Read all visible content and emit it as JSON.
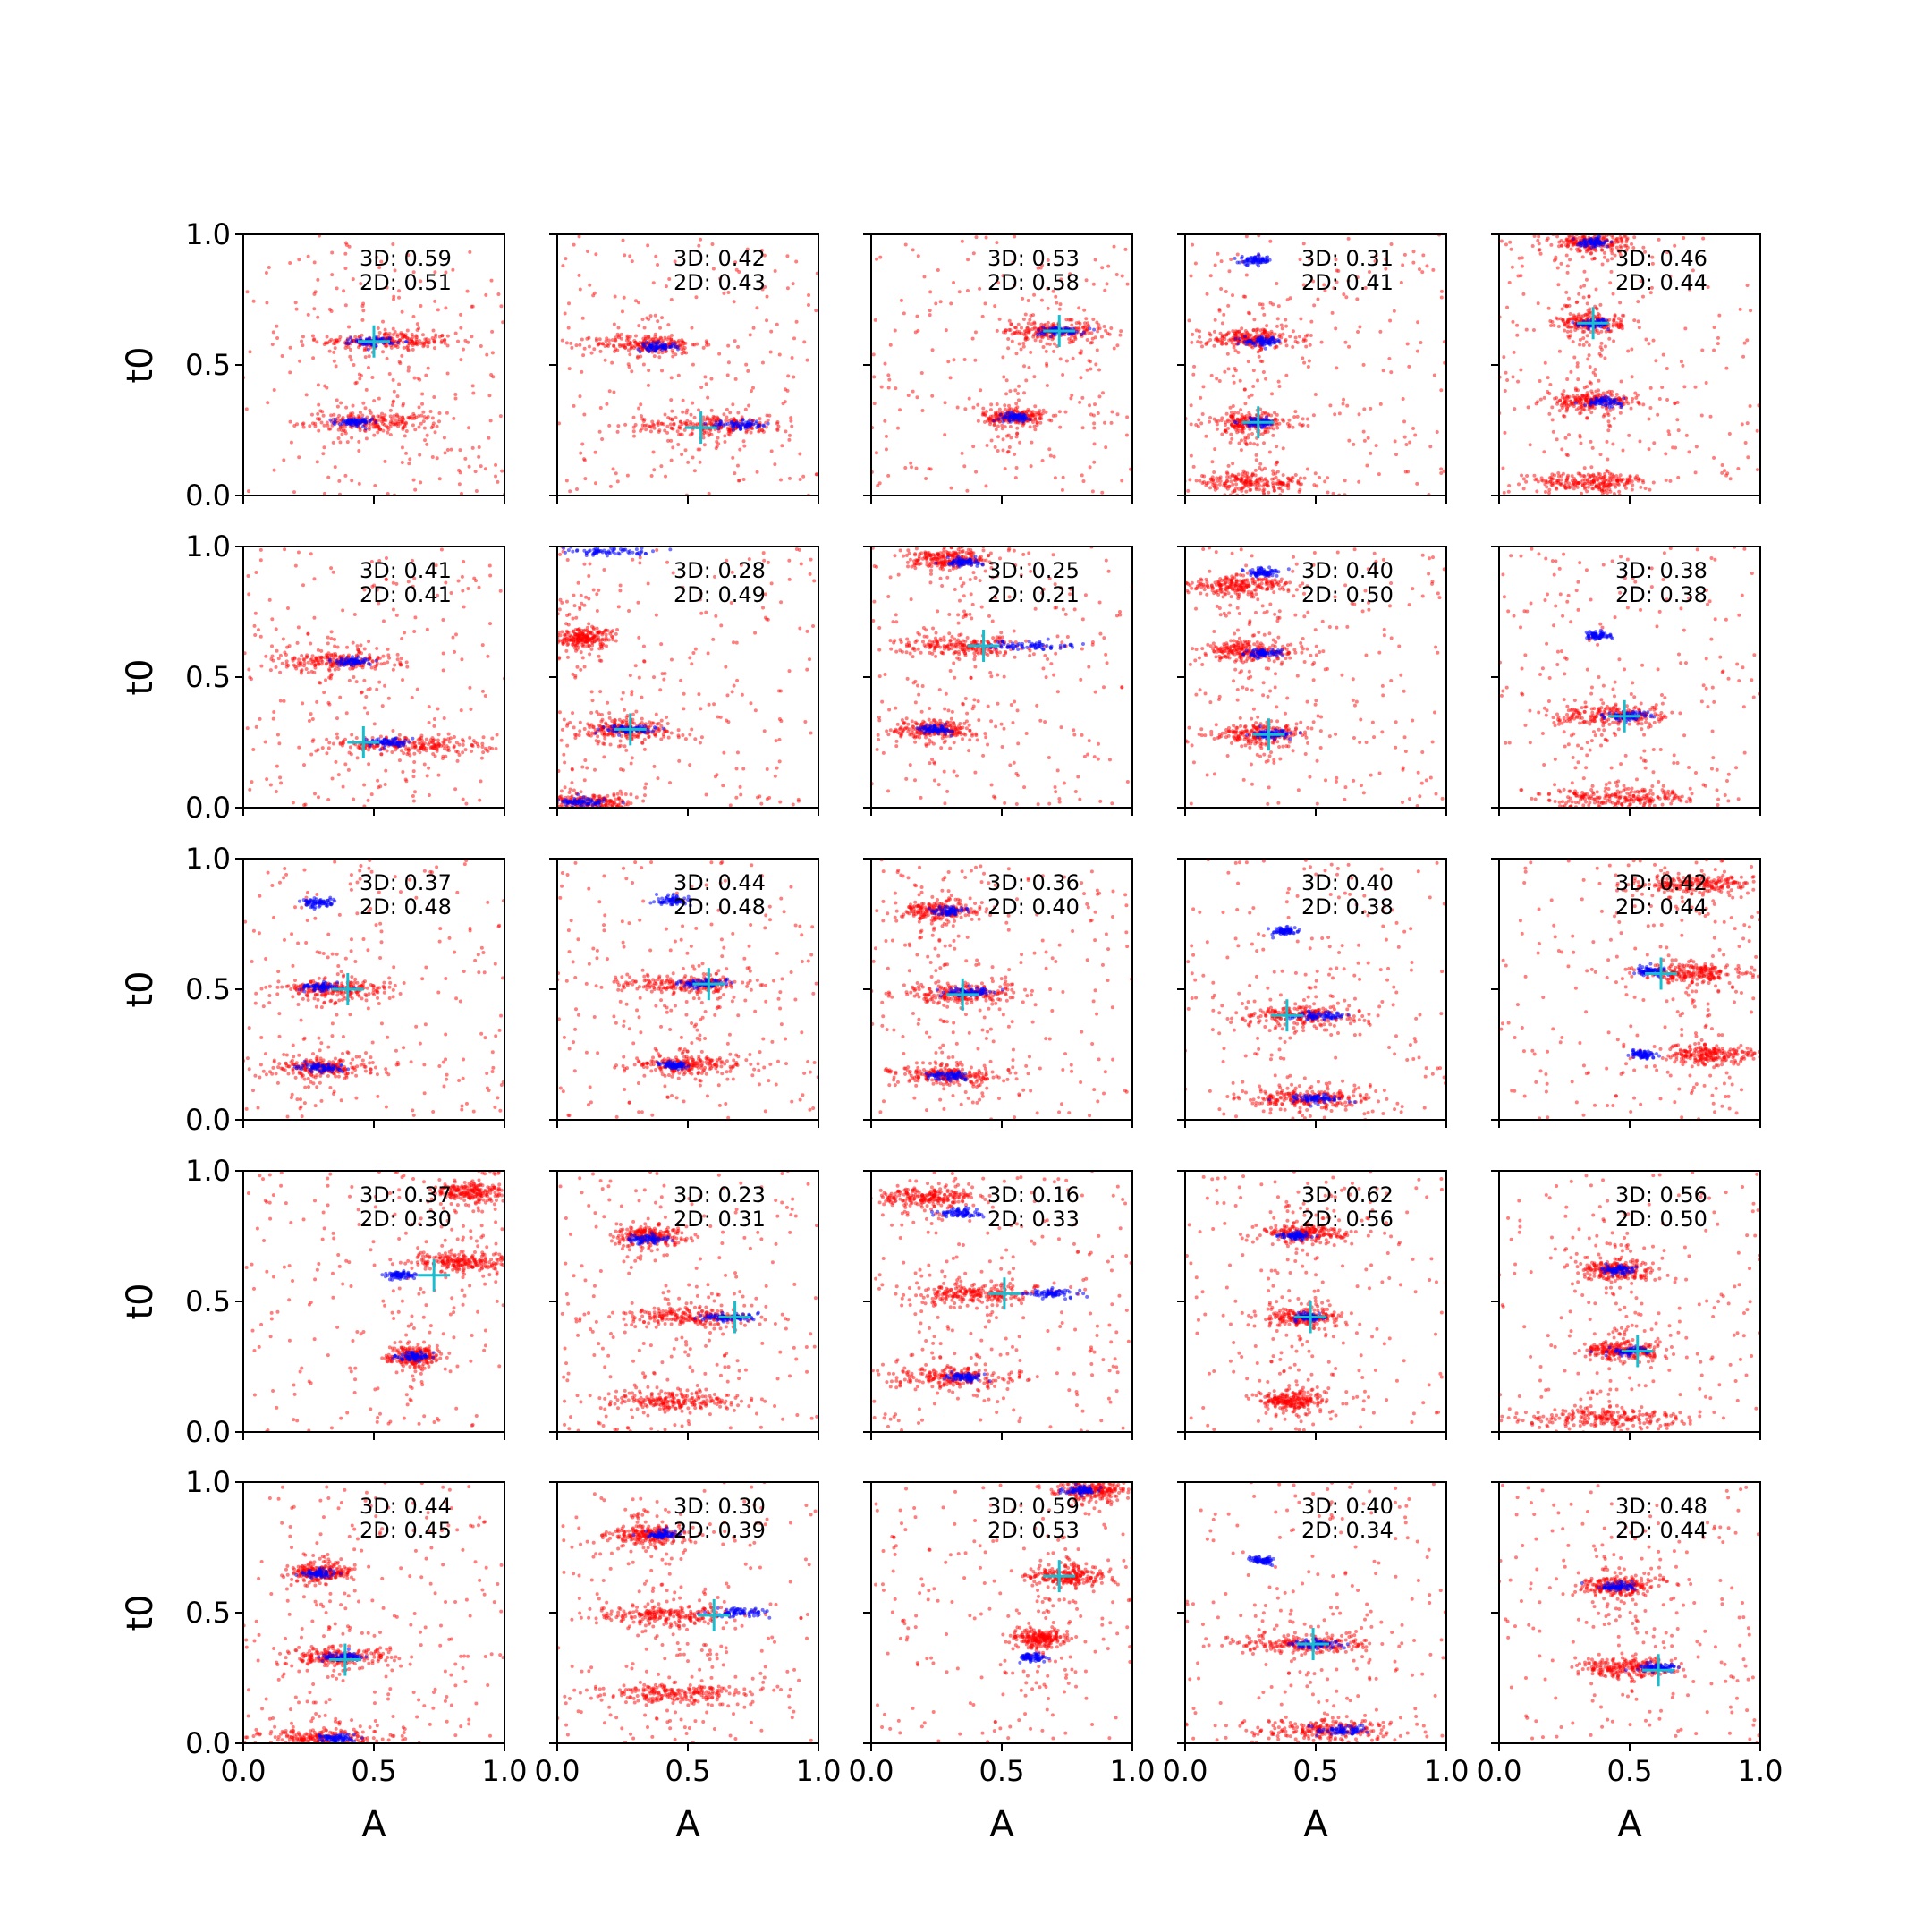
{
  "colors": {
    "scatter_3d": "#ff0000",
    "scatter_2d": "#0000ff",
    "true_marker": "#17becf",
    "axes": "#000000"
  },
  "chart_data": {
    "type": "scatter",
    "layout": "5x5 grid of scatter subplots",
    "xlabel": "A",
    "ylabel": "t0",
    "xlim": [
      0.0,
      1.0
    ],
    "ylim": [
      0.0,
      1.0
    ],
    "xticks": [
      "0.0",
      "0.5",
      "1.0"
    ],
    "yticks": [
      "0.0",
      "0.5",
      "1.0"
    ],
    "series_colors": {
      "3D": "#ff0000",
      "2D": "#0000ff"
    },
    "panels": [
      {
        "row": 0,
        "col": 0,
        "label3d": "3D: 0.59",
        "label2d": "2D: 0.51",
        "true": {
          "A": 0.5,
          "t0": 0.59
        },
        "clusters": [
          {
            "A": 0.55,
            "t0": 0.59,
            "sA": 0.13
          },
          {
            "A": 0.5,
            "t0": 0.28,
            "sA": 0.13
          }
        ],
        "blue": [
          {
            "A": 0.5,
            "t0": 0.59,
            "sA": 0.07
          },
          {
            "A": 0.42,
            "t0": 0.28,
            "sA": 0.06
          }
        ]
      },
      {
        "row": 0,
        "col": 1,
        "label3d": "3D: 0.42",
        "label2d": "2D: 0.43",
        "true": {
          "A": 0.55,
          "t0": 0.26
        },
        "clusters": [
          {
            "A": 0.35,
            "t0": 0.58,
            "sA": 0.1
          },
          {
            "A": 0.6,
            "t0": 0.27,
            "sA": 0.15
          }
        ],
        "blue": [
          {
            "A": 0.38,
            "t0": 0.57,
            "sA": 0.06
          },
          {
            "A": 0.7,
            "t0": 0.27,
            "sA": 0.1
          }
        ]
      },
      {
        "row": 0,
        "col": 2,
        "label3d": "3D: 0.53",
        "label2d": "2D: 0.58",
        "true": {
          "A": 0.72,
          "t0": 0.63
        },
        "clusters": [
          {
            "A": 0.7,
            "t0": 0.63,
            "sA": 0.1
          },
          {
            "A": 0.55,
            "t0": 0.3,
            "sA": 0.06
          }
        ],
        "blue": [
          {
            "A": 0.72,
            "t0": 0.63,
            "sA": 0.08
          },
          {
            "A": 0.55,
            "t0": 0.3,
            "sA": 0.05
          }
        ]
      },
      {
        "row": 0,
        "col": 3,
        "label3d": "3D: 0.31",
        "label2d": "2D: 0.41",
        "true": {
          "A": 0.28,
          "t0": 0.28
        },
        "clusters": [
          {
            "A": 0.25,
            "t0": 0.6,
            "sA": 0.09
          },
          {
            "A": 0.25,
            "t0": 0.28,
            "sA": 0.09
          },
          {
            "A": 0.25,
            "t0": 0.05,
            "sA": 0.12
          }
        ],
        "blue": [
          {
            "A": 0.27,
            "t0": 0.9,
            "sA": 0.05
          },
          {
            "A": 0.3,
            "t0": 0.59,
            "sA": 0.06
          },
          {
            "A": 0.28,
            "t0": 0.28,
            "sA": 0.06
          }
        ]
      },
      {
        "row": 0,
        "col": 4,
        "label3d": "3D: 0.46",
        "label2d": "2D: 0.44",
        "true": {
          "A": 0.36,
          "t0": 0.66
        },
        "clusters": [
          {
            "A": 0.35,
            "t0": 0.97,
            "sA": 0.08
          },
          {
            "A": 0.35,
            "t0": 0.66,
            "sA": 0.06
          },
          {
            "A": 0.35,
            "t0": 0.36,
            "sA": 0.09
          },
          {
            "A": 0.35,
            "t0": 0.05,
            "sA": 0.12
          }
        ],
        "blue": [
          {
            "A": 0.36,
            "t0": 0.97,
            "sA": 0.05
          },
          {
            "A": 0.37,
            "t0": 0.66,
            "sA": 0.05
          },
          {
            "A": 0.4,
            "t0": 0.36,
            "sA": 0.06
          }
        ]
      },
      {
        "row": 1,
        "col": 0,
        "label3d": "3D: 0.41",
        "label2d": "2D: 0.41",
        "true": {
          "A": 0.46,
          "t0": 0.25
        },
        "clusters": [
          {
            "A": 0.35,
            "t0": 0.56,
            "sA": 0.12
          },
          {
            "A": 0.65,
            "t0": 0.24,
            "sA": 0.16
          }
        ],
        "blue": [
          {
            "A": 0.42,
            "t0": 0.56,
            "sA": 0.06
          },
          {
            "A": 0.55,
            "t0": 0.25,
            "sA": 0.06
          }
        ]
      },
      {
        "row": 1,
        "col": 1,
        "label3d": "3D: 0.28",
        "label2d": "2D: 0.49",
        "true": {
          "A": 0.28,
          "t0": 0.3
        },
        "clusters": [
          {
            "A": 0.25,
            "t0": 0.3,
            "sA": 0.1
          },
          {
            "A": 0.1,
            "t0": 0.65,
            "sA": 0.06
          },
          {
            "A": 0.1,
            "t0": 0.02,
            "sA": 0.1
          }
        ],
        "blue": [
          {
            "A": 0.28,
            "t0": 0.3,
            "sA": 0.1
          },
          {
            "A": 0.2,
            "t0": 0.98,
            "sA": 0.15
          },
          {
            "A": 0.1,
            "t0": 0.02,
            "sA": 0.08
          }
        ]
      },
      {
        "row": 1,
        "col": 2,
        "label3d": "3D: 0.25",
        "label2d": "2D: 0.21",
        "true": {
          "A": 0.43,
          "t0": 0.62
        },
        "clusters": [
          {
            "A": 0.35,
            "t0": 0.62,
            "sA": 0.12
          },
          {
            "A": 0.3,
            "t0": 0.95,
            "sA": 0.08
          },
          {
            "A": 0.25,
            "t0": 0.3,
            "sA": 0.08
          }
        ],
        "blue": [
          {
            "A": 0.6,
            "t0": 0.62,
            "sA": 0.14
          },
          {
            "A": 0.35,
            "t0": 0.94,
            "sA": 0.06
          },
          {
            "A": 0.25,
            "t0": 0.3,
            "sA": 0.05
          }
        ]
      },
      {
        "row": 1,
        "col": 3,
        "label3d": "3D: 0.40",
        "label2d": "2D: 0.50",
        "true": {
          "A": 0.32,
          "t0": 0.28
        },
        "clusters": [
          {
            "A": 0.25,
            "t0": 0.6,
            "sA": 0.1
          },
          {
            "A": 0.3,
            "t0": 0.28,
            "sA": 0.09
          },
          {
            "A": 0.2,
            "t0": 0.85,
            "sA": 0.1
          }
        ],
        "blue": [
          {
            "A": 0.3,
            "t0": 0.9,
            "sA": 0.05
          },
          {
            "A": 0.3,
            "t0": 0.59,
            "sA": 0.06
          },
          {
            "A": 0.33,
            "t0": 0.28,
            "sA": 0.06
          }
        ]
      },
      {
        "row": 1,
        "col": 4,
        "label3d": "3D: 0.38",
        "label2d": "2D: 0.38",
        "true": {
          "A": 0.48,
          "t0": 0.35
        },
        "clusters": [
          {
            "A": 0.45,
            "t0": 0.35,
            "sA": 0.12
          },
          {
            "A": 0.45,
            "t0": 0.04,
            "sA": 0.15
          }
        ],
        "blue": [
          {
            "A": 0.38,
            "t0": 0.66,
            "sA": 0.04
          },
          {
            "A": 0.5,
            "t0": 0.35,
            "sA": 0.08
          }
        ]
      },
      {
        "row": 2,
        "col": 0,
        "label3d": "3D: 0.37",
        "label2d": "2D: 0.48",
        "true": {
          "A": 0.4,
          "t0": 0.5
        },
        "clusters": [
          {
            "A": 0.35,
            "t0": 0.5,
            "sA": 0.1
          },
          {
            "A": 0.3,
            "t0": 0.2,
            "sA": 0.1
          }
        ],
        "blue": [
          {
            "A": 0.29,
            "t0": 0.83,
            "sA": 0.05
          },
          {
            "A": 0.3,
            "t0": 0.51,
            "sA": 0.07
          },
          {
            "A": 0.3,
            "t0": 0.2,
            "sA": 0.07
          }
        ]
      },
      {
        "row": 2,
        "col": 1,
        "label3d": "3D: 0.44",
        "label2d": "2D: 0.48",
        "true": {
          "A": 0.58,
          "t0": 0.52
        },
        "clusters": [
          {
            "A": 0.5,
            "t0": 0.52,
            "sA": 0.13
          },
          {
            "A": 0.5,
            "t0": 0.21,
            "sA": 0.11
          }
        ],
        "blue": [
          {
            "A": 0.45,
            "t0": 0.84,
            "sA": 0.06
          },
          {
            "A": 0.55,
            "t0": 0.52,
            "sA": 0.07
          },
          {
            "A": 0.45,
            "t0": 0.21,
            "sA": 0.05
          }
        ]
      },
      {
        "row": 2,
        "col": 2,
        "label3d": "3D: 0.36",
        "label2d": "2D: 0.40",
        "true": {
          "A": 0.35,
          "t0": 0.48
        },
        "clusters": [
          {
            "A": 0.35,
            "t0": 0.48,
            "sA": 0.12
          },
          {
            "A": 0.3,
            "t0": 0.17,
            "sA": 0.1
          },
          {
            "A": 0.25,
            "t0": 0.8,
            "sA": 0.08
          }
        ],
        "blue": [
          {
            "A": 0.3,
            "t0": 0.8,
            "sA": 0.05
          },
          {
            "A": 0.38,
            "t0": 0.49,
            "sA": 0.09
          },
          {
            "A": 0.3,
            "t0": 0.17,
            "sA": 0.06
          }
        ]
      },
      {
        "row": 2,
        "col": 3,
        "label3d": "3D: 0.40",
        "label2d": "2D: 0.38",
        "true": {
          "A": 0.39,
          "t0": 0.4
        },
        "clusters": [
          {
            "A": 0.45,
            "t0": 0.4,
            "sA": 0.12
          },
          {
            "A": 0.45,
            "t0": 0.08,
            "sA": 0.13
          }
        ],
        "blue": [
          {
            "A": 0.38,
            "t0": 0.72,
            "sA": 0.04
          },
          {
            "A": 0.5,
            "t0": 0.4,
            "sA": 0.1
          },
          {
            "A": 0.5,
            "t0": 0.08,
            "sA": 0.08
          }
        ]
      },
      {
        "row": 2,
        "col": 4,
        "label3d": "3D: 0.42",
        "label2d": "2D: 0.44",
        "true": {
          "A": 0.62,
          "t0": 0.56
        },
        "clusters": [
          {
            "A": 0.75,
            "t0": 0.56,
            "sA": 0.1
          },
          {
            "A": 0.75,
            "t0": 0.9,
            "sA": 0.12
          },
          {
            "A": 0.8,
            "t0": 0.25,
            "sA": 0.1
          }
        ],
        "blue": [
          {
            "A": 0.58,
            "t0": 0.57,
            "sA": 0.05
          },
          {
            "A": 0.55,
            "t0": 0.25,
            "sA": 0.04
          }
        ]
      },
      {
        "row": 3,
        "col": 0,
        "label3d": "3D: 0.37",
        "label2d": "2D: 0.30",
        "true": {
          "A": 0.73,
          "t0": 0.6
        },
        "clusters": [
          {
            "A": 0.85,
            "t0": 0.65,
            "sA": 0.1
          },
          {
            "A": 0.88,
            "t0": 0.92,
            "sA": 0.08
          },
          {
            "A": 0.65,
            "t0": 0.29,
            "sA": 0.05
          }
        ],
        "blue": [
          {
            "A": 0.6,
            "t0": 0.6,
            "sA": 0.05
          },
          {
            "A": 0.65,
            "t0": 0.29,
            "sA": 0.05
          }
        ]
      },
      {
        "row": 3,
        "col": 1,
        "label3d": "3D: 0.23",
        "label2d": "2D: 0.31",
        "true": {
          "A": 0.68,
          "t0": 0.44
        },
        "clusters": [
          {
            "A": 0.5,
            "t0": 0.44,
            "sA": 0.13
          },
          {
            "A": 0.45,
            "t0": 0.12,
            "sA": 0.13
          },
          {
            "A": 0.35,
            "t0": 0.75,
            "sA": 0.07
          }
        ],
        "blue": [
          {
            "A": 0.65,
            "t0": 0.44,
            "sA": 0.1
          },
          {
            "A": 0.35,
            "t0": 0.74,
            "sA": 0.06
          }
        ]
      },
      {
        "row": 3,
        "col": 2,
        "label3d": "3D: 0.16",
        "label2d": "2D: 0.33",
        "true": {
          "A": 0.51,
          "t0": 0.53
        },
        "clusters": [
          {
            "A": 0.4,
            "t0": 0.53,
            "sA": 0.14
          },
          {
            "A": 0.3,
            "t0": 0.21,
            "sA": 0.12
          },
          {
            "A": 0.2,
            "t0": 0.9,
            "sA": 0.1
          }
        ],
        "blue": [
          {
            "A": 0.7,
            "t0": 0.53,
            "sA": 0.1
          },
          {
            "A": 0.35,
            "t0": 0.84,
            "sA": 0.07
          },
          {
            "A": 0.35,
            "t0": 0.21,
            "sA": 0.06
          }
        ]
      },
      {
        "row": 3,
        "col": 3,
        "label3d": "3D: 0.62",
        "label2d": "2D: 0.56",
        "true": {
          "A": 0.48,
          "t0": 0.44
        },
        "clusters": [
          {
            "A": 0.45,
            "t0": 0.76,
            "sA": 0.08
          },
          {
            "A": 0.45,
            "t0": 0.44,
            "sA": 0.08
          },
          {
            "A": 0.4,
            "t0": 0.12,
            "sA": 0.06
          }
        ],
        "blue": [
          {
            "A": 0.42,
            "t0": 0.75,
            "sA": 0.05
          },
          {
            "A": 0.47,
            "t0": 0.44,
            "sA": 0.05
          }
        ]
      },
      {
        "row": 3,
        "col": 4,
        "label3d": "3D: 0.56",
        "label2d": "2D: 0.50",
        "true": {
          "A": 0.53,
          "t0": 0.31
        },
        "clusters": [
          {
            "A": 0.45,
            "t0": 0.62,
            "sA": 0.07
          },
          {
            "A": 0.48,
            "t0": 0.31,
            "sA": 0.08
          },
          {
            "A": 0.4,
            "t0": 0.05,
            "sA": 0.15
          }
        ],
        "blue": [
          {
            "A": 0.45,
            "t0": 0.62,
            "sA": 0.05
          },
          {
            "A": 0.5,
            "t0": 0.31,
            "sA": 0.06
          }
        ]
      },
      {
        "row": 4,
        "col": 0,
        "label3d": "3D: 0.44",
        "label2d": "2D: 0.45",
        "true": {
          "A": 0.39,
          "t0": 0.32
        },
        "clusters": [
          {
            "A": 0.3,
            "t0": 0.65,
            "sA": 0.06
          },
          {
            "A": 0.35,
            "t0": 0.33,
            "sA": 0.1
          },
          {
            "A": 0.3,
            "t0": 0.02,
            "sA": 0.12
          }
        ],
        "blue": [
          {
            "A": 0.3,
            "t0": 0.65,
            "sA": 0.05
          },
          {
            "A": 0.38,
            "t0": 0.33,
            "sA": 0.07
          },
          {
            "A": 0.35,
            "t0": 0.02,
            "sA": 0.06
          }
        ]
      },
      {
        "row": 4,
        "col": 1,
        "label3d": "3D: 0.30",
        "label2d": "2D: 0.39",
        "true": {
          "A": 0.6,
          "t0": 0.49
        },
        "clusters": [
          {
            "A": 0.4,
            "t0": 0.49,
            "sA": 0.14
          },
          {
            "A": 0.45,
            "t0": 0.19,
            "sA": 0.12
          },
          {
            "A": 0.35,
            "t0": 0.8,
            "sA": 0.07
          }
        ],
        "blue": [
          {
            "A": 0.7,
            "t0": 0.5,
            "sA": 0.1
          },
          {
            "A": 0.4,
            "t0": 0.8,
            "sA": 0.06
          }
        ]
      },
      {
        "row": 4,
        "col": 2,
        "label3d": "3D: 0.59",
        "label2d": "2D: 0.53",
        "true": {
          "A": 0.72,
          "t0": 0.64
        },
        "clusters": [
          {
            "A": 0.75,
            "t0": 0.64,
            "sA": 0.08
          },
          {
            "A": 0.85,
            "t0": 0.97,
            "sA": 0.08
          },
          {
            "A": 0.65,
            "t0": 0.4,
            "sA": 0.05
          }
        ],
        "blue": [
          {
            "A": 0.8,
            "t0": 0.97,
            "sA": 0.06
          },
          {
            "A": 0.62,
            "t0": 0.33,
            "sA": 0.04
          }
        ]
      },
      {
        "row": 4,
        "col": 3,
        "label3d": "3D: 0.40",
        "label2d": "2D: 0.34",
        "true": {
          "A": 0.49,
          "t0": 0.38
        },
        "clusters": [
          {
            "A": 0.45,
            "t0": 0.38,
            "sA": 0.12
          },
          {
            "A": 0.55,
            "t0": 0.05,
            "sA": 0.14
          }
        ],
        "blue": [
          {
            "A": 0.3,
            "t0": 0.7,
            "sA": 0.04
          },
          {
            "A": 0.5,
            "t0": 0.38,
            "sA": 0.08
          },
          {
            "A": 0.6,
            "t0": 0.05,
            "sA": 0.08
          }
        ]
      },
      {
        "row": 4,
        "col": 4,
        "label3d": "3D: 0.48",
        "label2d": "2D: 0.44",
        "true": {
          "A": 0.61,
          "t0": 0.28
        },
        "clusters": [
          {
            "A": 0.45,
            "t0": 0.6,
            "sA": 0.08
          },
          {
            "A": 0.5,
            "t0": 0.29,
            "sA": 0.1
          }
        ],
        "blue": [
          {
            "A": 0.45,
            "t0": 0.6,
            "sA": 0.06
          },
          {
            "A": 0.6,
            "t0": 0.29,
            "sA": 0.07
          }
        ]
      }
    ]
  }
}
